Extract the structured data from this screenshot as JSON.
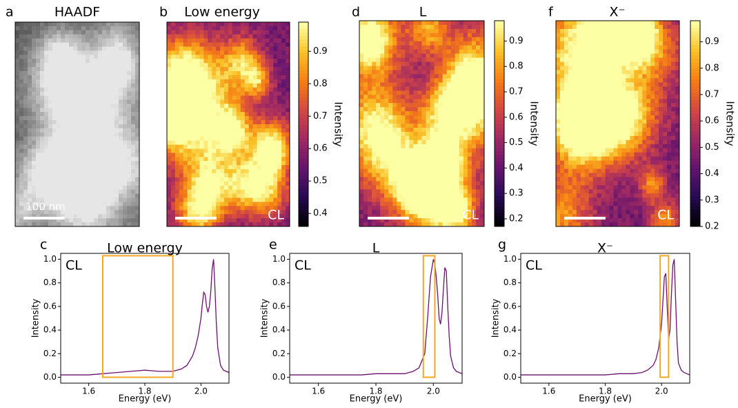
{
  "chart_data": [
    {
      "type": "image",
      "letter": "a",
      "title": "HAADF",
      "colormap": "gray",
      "scale_bar_label": "100 nm"
    },
    {
      "type": "image",
      "letter": "b",
      "title": "Low energy",
      "colormap": "inferno",
      "corner_label": "CL",
      "colorbar": {
        "label": "Intensity",
        "clim": [
          0.36,
          0.99
        ],
        "cticks": [
          0.4,
          0.5,
          0.6,
          0.7,
          0.8,
          0.9
        ]
      }
    },
    {
      "type": "image",
      "letter": "d",
      "title": "L",
      "colormap": "inferno",
      "corner_label": "CL",
      "colorbar": {
        "label": "Intensity",
        "clim": [
          0.17,
          0.98
        ],
        "cticks": [
          0.2,
          0.3,
          0.4,
          0.5,
          0.6,
          0.7,
          0.8,
          0.9
        ]
      }
    },
    {
      "type": "image",
      "letter": "f",
      "title": "X⁻",
      "colormap": "inferno",
      "corner_label": "CL",
      "colorbar": {
        "label": "Intensity",
        "clim": [
          0.2,
          0.98
        ],
        "cticks": [
          0.2,
          0.3,
          0.4,
          0.5,
          0.6,
          0.7,
          0.8,
          0.9
        ]
      }
    },
    {
      "type": "line",
      "letter": "c",
      "title": "Low energy",
      "corner_label": "CL",
      "x_label": "Energy (eV)",
      "y_label": "Intensity",
      "xlim": [
        1.5,
        2.1
      ],
      "xticks": [
        1.6,
        1.8,
        {
          "value": 2,
          "label": "2.0"
        }
      ],
      "ylim": [
        -0.05,
        1.05
      ],
      "yticks": [
        {
          "value": 0,
          "label": "0.0"
        },
        0.2,
        0.4,
        0.6,
        0.8,
        {
          "value": 1,
          "label": "1.0"
        }
      ],
      "x": [
        1.5,
        1.55,
        1.6,
        1.65,
        1.7,
        1.75,
        1.8,
        1.85,
        1.9,
        1.93,
        1.95,
        1.97,
        1.98,
        1.99,
        2.0,
        2.005,
        2.01,
        2.015,
        2.02,
        2.025,
        2.03,
        2.035,
        2.04,
        2.045,
        2.05,
        2.055,
        2.06,
        2.07,
        2.08,
        2.09,
        2.1
      ],
      "series": [
        {
          "color": "#6a0f70",
          "values": [
            0.02,
            0.02,
            0.02,
            0.03,
            0.04,
            0.05,
            0.06,
            0.05,
            0.05,
            0.07,
            0.1,
            0.18,
            0.25,
            0.35,
            0.5,
            0.62,
            0.72,
            0.7,
            0.6,
            0.55,
            0.6,
            0.72,
            0.92,
            1.0,
            0.75,
            0.45,
            0.25,
            0.1,
            0.06,
            0.05,
            0.04
          ]
        }
      ],
      "highlight": {
        "x": [
          1.65,
          1.9
        ],
        "y": [
          0,
          1.03
        ],
        "color": "#f5a623"
      }
    },
    {
      "type": "line",
      "letter": "e",
      "title": "L",
      "corner_label": "CL",
      "x_label": "Energy (eV)",
      "y_label": "Intensity",
      "xlim": [
        1.5,
        2.1
      ],
      "xticks": [
        1.6,
        1.8,
        {
          "value": 2,
          "label": "2.0"
        }
      ],
      "ylim": [
        -0.05,
        1.05
      ],
      "yticks": [
        {
          "value": 0,
          "label": "0.0"
        },
        0.2,
        0.4,
        0.6,
        0.8,
        {
          "value": 1,
          "label": "1.0"
        }
      ],
      "x": [
        1.5,
        1.55,
        1.6,
        1.65,
        1.7,
        1.75,
        1.8,
        1.85,
        1.9,
        1.93,
        1.95,
        1.97,
        1.98,
        1.99,
        2.0,
        2.005,
        2.01,
        2.015,
        2.02,
        2.025,
        2.03,
        2.035,
        2.04,
        2.045,
        2.05,
        2.055,
        2.06,
        2.07,
        2.08,
        2.09,
        2.1
      ],
      "series": [
        {
          "color": "#6a0f70",
          "values": [
            0.02,
            0.02,
            0.02,
            0.02,
            0.02,
            0.02,
            0.03,
            0.03,
            0.03,
            0.05,
            0.08,
            0.2,
            0.5,
            0.85,
            1.0,
            0.96,
            0.85,
            0.7,
            0.5,
            0.45,
            0.55,
            0.75,
            0.93,
            0.9,
            0.6,
            0.35,
            0.18,
            0.08,
            0.05,
            0.04,
            0.03
          ]
        }
      ],
      "highlight": {
        "x": [
          1.965,
          2.005
        ],
        "y": [
          0,
          1.03
        ],
        "color": "#f5a623"
      }
    },
    {
      "type": "line",
      "letter": "g",
      "title": "X⁻",
      "corner_label": "CL",
      "x_label": "Energy (eV)",
      "y_label": "Intensity",
      "xlim": [
        1.5,
        2.1
      ],
      "xticks": [
        1.6,
        1.8,
        {
          "value": 2,
          "label": "2.0"
        }
      ],
      "ylim": [
        -0.05,
        1.05
      ],
      "yticks": [
        {
          "value": 0,
          "label": "0.0"
        },
        0.2,
        0.4,
        0.6,
        0.8,
        {
          "value": 1,
          "label": "1.0"
        }
      ],
      "x": [
        1.5,
        1.55,
        1.6,
        1.65,
        1.7,
        1.75,
        1.8,
        1.85,
        1.9,
        1.93,
        1.95,
        1.97,
        1.98,
        1.99,
        2.0,
        2.005,
        2.01,
        2.015,
        2.02,
        2.025,
        2.03,
        2.035,
        2.04,
        2.045,
        2.05,
        2.055,
        2.06,
        2.07,
        2.08,
        2.09,
        2.1
      ],
      "series": [
        {
          "color": "#6a0f70",
          "values": [
            0.02,
            0.02,
            0.02,
            0.02,
            0.02,
            0.02,
            0.02,
            0.03,
            0.03,
            0.04,
            0.06,
            0.1,
            0.15,
            0.25,
            0.45,
            0.65,
            0.85,
            0.88,
            0.6,
            0.32,
            0.4,
            0.7,
            0.95,
            1.0,
            0.65,
            0.3,
            0.12,
            0.06,
            0.04,
            0.03,
            0.02
          ]
        }
      ],
      "highlight": {
        "x": [
          1.995,
          2.025
        ],
        "y": [
          0,
          1.03
        ],
        "color": "#f5a623"
      }
    }
  ]
}
